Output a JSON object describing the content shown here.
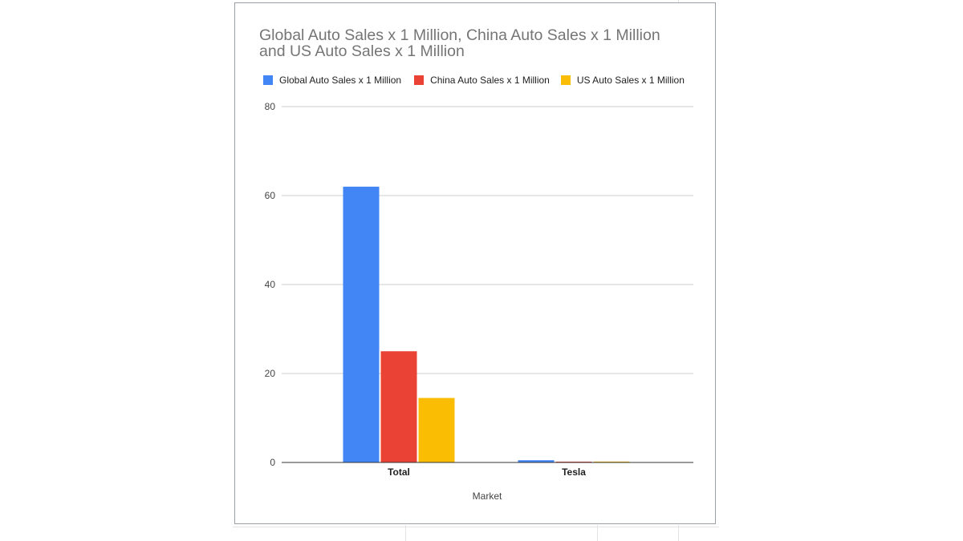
{
  "colors": {
    "global": "#4285f4",
    "china": "#ea4335",
    "us": "#fbbc04",
    "gridline": "#cccccc",
    "axis": "#333333",
    "title": "#757575"
  },
  "chart_data": {
    "type": "bar",
    "title_line1": "Global Auto Sales x 1 Million,  China Auto Sales x 1 Million",
    "title_line2": "and US Auto Sales x 1 Million",
    "xlabel": "Market",
    "ylabel": "",
    "ylim": [
      0,
      80
    ],
    "yticks": [
      0,
      20,
      40,
      60,
      80
    ],
    "grid": true,
    "legend_position": "top",
    "categories": [
      "Total",
      "Tesla"
    ],
    "series": [
      {
        "name": "Global Auto Sales x 1 Million",
        "color_key": "global",
        "values": [
          62,
          0.5
        ]
      },
      {
        "name": "China Auto Sales x 1 Million",
        "color_key": "china",
        "values": [
          25,
          0.15
        ]
      },
      {
        "name": "US Auto Sales x 1 Million",
        "color_key": "us",
        "values": [
          14.5,
          0.2
        ]
      }
    ]
  }
}
